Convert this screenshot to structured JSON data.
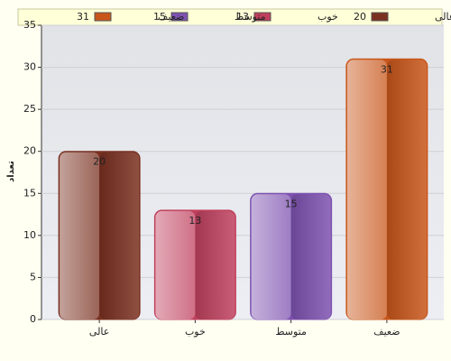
{
  "chart_data": {
    "type": "bar",
    "y_label": "تعداد",
    "categories": [
      "عالی",
      "خوب",
      "متوسط",
      "ضعیف"
    ],
    "values": [
      20,
      13,
      15,
      31
    ],
    "colors": [
      "#7a3020",
      "#c0405e",
      "#7e52b0",
      "#c8561a"
    ],
    "ylim": [
      0,
      35
    ],
    "yticks": [
      0,
      5,
      10,
      15,
      20,
      25,
      30,
      35
    ],
    "grid": true
  }
}
